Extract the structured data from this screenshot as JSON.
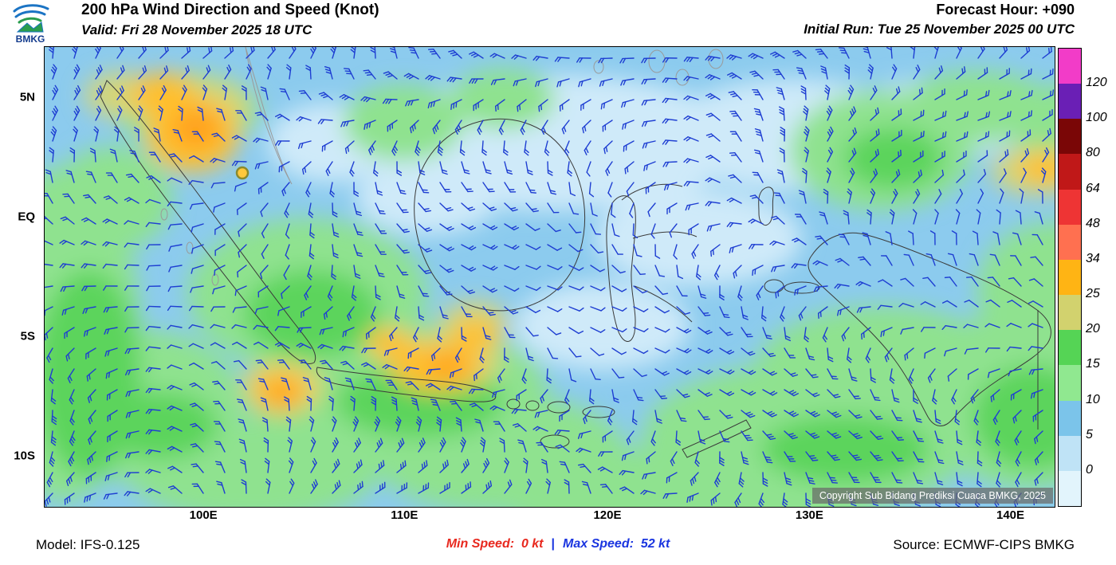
{
  "header": {
    "logo_text": "BMKG",
    "title": "200 hPa Wind Direction and Speed (Knot)",
    "valid": "Valid: Fri 28 November 2025 18 UTC",
    "forecast_hour": "Forecast Hour: +090",
    "initial_run": "Initial Run: Tue 25 November 2025 00 UTC"
  },
  "map": {
    "lat_labels": [
      "5N",
      "EQ",
      "5S",
      "10S"
    ],
    "lon_labels": [
      "100E",
      "110E",
      "120E",
      "130E",
      "140E"
    ],
    "copyright": "Copyright Sub Bidang Prediksi Cuaca BMKG, 2025",
    "barb_color": "#1e3ed2"
  },
  "legend": {
    "tick_labels": [
      "120",
      "100",
      "80",
      "64",
      "48",
      "34",
      "25",
      "20",
      "15",
      "10",
      "5",
      "0"
    ],
    "colors_top_to_bottom": [
      "#f23cc8",
      "#6a1fb5",
      "#7a0606",
      "#c01818",
      "#ee3434",
      "#ff7050",
      "#ffb414",
      "#d2d26e",
      "#55d455",
      "#90e890",
      "#7bc4ea",
      "#bfe3f6",
      "#e2f4fc"
    ]
  },
  "footer": {
    "model": "Model: IFS-0.125",
    "min_label": "Min Speed:",
    "min_value": "0 kt",
    "separator": "|",
    "max_label": "Max Speed:",
    "max_value": "52 kt",
    "source": "Source: ECMWF-CIPS BMKG"
  },
  "chart_data": {
    "type": "heatmap",
    "title": "200 hPa Wind Direction and Speed (Knot)",
    "valid_time": "Fri 28 November 2025 18 UTC",
    "forecast_hour": "+090",
    "initial_run": "Tue 25 November 2025 00 UTC",
    "x_ticks": [
      "100E",
      "110E",
      "120E",
      "130E",
      "140E"
    ],
    "y_ticks": [
      "5N",
      "EQ",
      "5S",
      "10S"
    ],
    "colorbar_levels_kt": [
      0,
      5,
      10,
      15,
      20,
      25,
      34,
      48,
      64,
      80,
      100,
      120
    ],
    "min_speed_kt": 0,
    "max_speed_kt": 52,
    "model": "IFS-0.125",
    "source": "ECMWF-CIPS BMKG",
    "legend_position": "right",
    "grid": false
  }
}
